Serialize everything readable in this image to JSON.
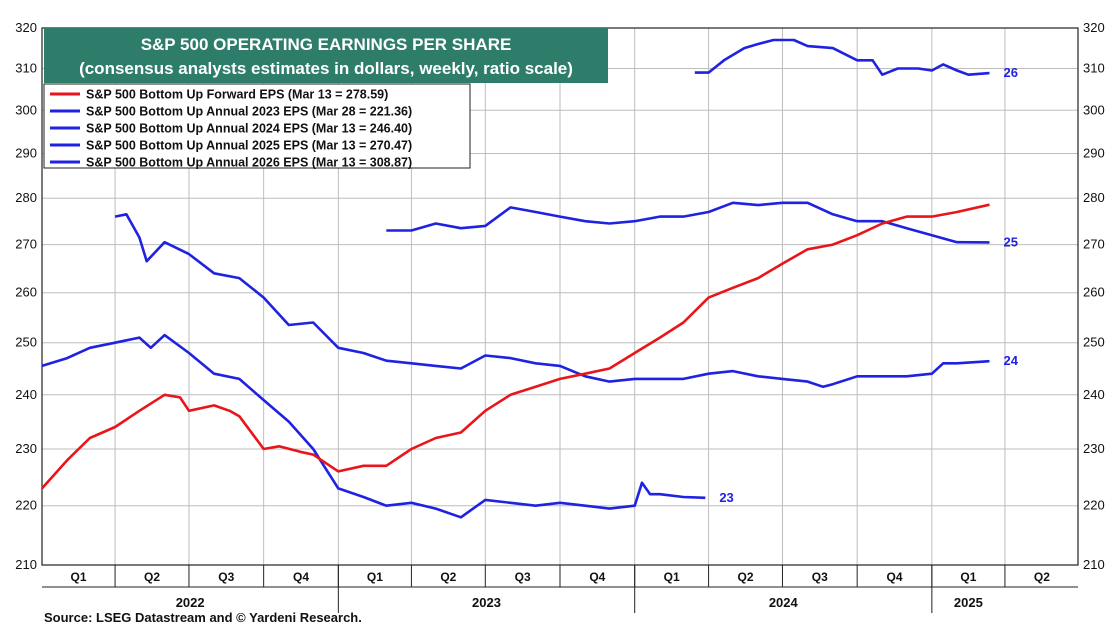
{
  "chart_data": {
    "type": "line",
    "title": "S&P 500 OPERATING EARNINGS PER SHARE",
    "subtitle": "(consensus analysts estimates in dollars, weekly, ratio scale)",
    "y_scale": "log",
    "ylim": [
      210,
      320
    ],
    "y_ticks": [
      210,
      220,
      230,
      240,
      250,
      260,
      270,
      280,
      290,
      300,
      310,
      320
    ],
    "xlim": [
      "2022-01-01",
      "2025-06-30"
    ],
    "x_quarter_labels": [
      "Q1",
      "Q2",
      "Q3",
      "Q4",
      "Q1",
      "Q2",
      "Q3",
      "Q4",
      "Q1",
      "Q2",
      "Q3",
      "Q4",
      "Q1",
      "Q2"
    ],
    "x_year_labels": [
      "2022",
      "2023",
      "2024",
      "2025"
    ],
    "grid": true,
    "legend_position": "top-left",
    "series": [
      {
        "name": "S&P 500 Bottom Up Forward EPS (Mar 13 = 278.59)",
        "color": "#e8151b",
        "points": [
          [
            "2022-01-01",
            223
          ],
          [
            "2022-02-01",
            228
          ],
          [
            "2022-03-01",
            232
          ],
          [
            "2022-04-01",
            234
          ],
          [
            "2022-05-01",
            237
          ],
          [
            "2022-06-01",
            240
          ],
          [
            "2022-06-20",
            239.5
          ],
          [
            "2022-07-01",
            237
          ],
          [
            "2022-08-01",
            238
          ],
          [
            "2022-08-20",
            237
          ],
          [
            "2022-09-01",
            236
          ],
          [
            "2022-10-01",
            230
          ],
          [
            "2022-10-20",
            230.5
          ],
          [
            "2022-11-15",
            229.5
          ],
          [
            "2022-12-01",
            229
          ],
          [
            "2023-01-01",
            226
          ],
          [
            "2023-02-01",
            227
          ],
          [
            "2023-03-01",
            227
          ],
          [
            "2023-04-01",
            230
          ],
          [
            "2023-05-01",
            232
          ],
          [
            "2023-06-01",
            233
          ],
          [
            "2023-07-01",
            237
          ],
          [
            "2023-08-01",
            240
          ],
          [
            "2023-09-01",
            241.5
          ],
          [
            "2023-10-01",
            243
          ],
          [
            "2023-11-01",
            244
          ],
          [
            "2023-12-01",
            245
          ],
          [
            "2024-01-01",
            248
          ],
          [
            "2024-02-01",
            251
          ],
          [
            "2024-03-01",
            254
          ],
          [
            "2024-04-01",
            259
          ],
          [
            "2024-05-01",
            261
          ],
          [
            "2024-06-01",
            263
          ],
          [
            "2024-07-01",
            266
          ],
          [
            "2024-08-01",
            269
          ],
          [
            "2024-09-01",
            270
          ],
          [
            "2024-10-01",
            272
          ],
          [
            "2024-11-01",
            274.5
          ],
          [
            "2024-12-01",
            276
          ],
          [
            "2025-01-01",
            276
          ],
          [
            "2025-02-01",
            277
          ],
          [
            "2025-03-13",
            278.59
          ]
        ]
      },
      {
        "name": "S&P 500 Bottom Up Annual 2023 EPS (Mar 28 = 221.36)",
        "label": "23",
        "color": "#1f22e0",
        "points": [
          [
            "2022-01-01",
            245.5
          ],
          [
            "2022-02-01",
            247
          ],
          [
            "2022-03-01",
            249
          ],
          [
            "2022-04-01",
            250
          ],
          [
            "2022-05-01",
            251
          ],
          [
            "2022-05-15",
            249
          ],
          [
            "2022-06-01",
            251.5
          ],
          [
            "2022-07-01",
            248
          ],
          [
            "2022-08-01",
            244
          ],
          [
            "2022-09-01",
            243
          ],
          [
            "2022-10-01",
            239
          ],
          [
            "2022-11-01",
            235
          ],
          [
            "2022-12-01",
            230
          ],
          [
            "2023-01-01",
            223
          ],
          [
            "2023-02-01",
            221.5
          ],
          [
            "2023-03-01",
            220
          ],
          [
            "2023-04-01",
            220.5
          ],
          [
            "2023-05-01",
            219.5
          ],
          [
            "2023-06-01",
            218
          ],
          [
            "2023-07-01",
            221
          ],
          [
            "2023-08-01",
            220.5
          ],
          [
            "2023-09-01",
            220
          ],
          [
            "2023-10-01",
            220.5
          ],
          [
            "2023-11-01",
            220
          ],
          [
            "2023-12-01",
            219.5
          ],
          [
            "2024-01-01",
            220
          ],
          [
            "2024-01-10",
            224
          ],
          [
            "2024-01-20",
            222
          ],
          [
            "2024-02-01",
            222
          ],
          [
            "2024-03-01",
            221.5
          ],
          [
            "2024-03-28",
            221.36
          ]
        ]
      },
      {
        "name": "S&P 500 Bottom Up Annual 2024 EPS (Mar 13 = 246.40)",
        "label": "24",
        "color": "#1f22e0",
        "points": [
          [
            "2022-04-01",
            276
          ],
          [
            "2022-04-15",
            276.5
          ],
          [
            "2022-05-01",
            271.5
          ],
          [
            "2022-05-10",
            266.5
          ],
          [
            "2022-06-01",
            270.5
          ],
          [
            "2022-07-01",
            268
          ],
          [
            "2022-08-01",
            264
          ],
          [
            "2022-09-01",
            263
          ],
          [
            "2022-10-01",
            259
          ],
          [
            "2022-11-01",
            253.5
          ],
          [
            "2022-12-01",
            254
          ],
          [
            "2023-01-01",
            249
          ],
          [
            "2023-02-01",
            248
          ],
          [
            "2023-03-01",
            246.5
          ],
          [
            "2023-04-01",
            246
          ],
          [
            "2023-05-01",
            245.5
          ],
          [
            "2023-06-01",
            245
          ],
          [
            "2023-07-01",
            247.5
          ],
          [
            "2023-08-01",
            247
          ],
          [
            "2023-09-01",
            246
          ],
          [
            "2023-10-01",
            245.5
          ],
          [
            "2023-11-01",
            243.5
          ],
          [
            "2023-12-01",
            242.5
          ],
          [
            "2024-01-01",
            243
          ],
          [
            "2024-02-01",
            243
          ],
          [
            "2024-03-01",
            243
          ],
          [
            "2024-04-01",
            244
          ],
          [
            "2024-05-01",
            244.5
          ],
          [
            "2024-06-01",
            243.5
          ],
          [
            "2024-07-01",
            243
          ],
          [
            "2024-08-01",
            242.5
          ],
          [
            "2024-08-20",
            241.5
          ],
          [
            "2024-09-01",
            242
          ],
          [
            "2024-10-01",
            243.5
          ],
          [
            "2024-11-01",
            243.5
          ],
          [
            "2024-12-01",
            243.5
          ],
          [
            "2025-01-01",
            244
          ],
          [
            "2025-01-15",
            246
          ],
          [
            "2025-02-01",
            246
          ],
          [
            "2025-03-13",
            246.4
          ]
        ]
      },
      {
        "name": "S&P 500 Bottom Up Annual 2025 EPS (Mar 13 = 270.47)",
        "label": "25",
        "color": "#1f22e0",
        "points": [
          [
            "2023-03-01",
            273
          ],
          [
            "2023-04-01",
            273
          ],
          [
            "2023-05-01",
            274.5
          ],
          [
            "2023-06-01",
            273.5
          ],
          [
            "2023-07-01",
            274
          ],
          [
            "2023-08-01",
            278
          ],
          [
            "2023-09-01",
            277
          ],
          [
            "2023-10-01",
            276
          ],
          [
            "2023-11-01",
            275
          ],
          [
            "2023-12-01",
            274.5
          ],
          [
            "2024-01-01",
            275
          ],
          [
            "2024-02-01",
            276
          ],
          [
            "2024-03-01",
            276
          ],
          [
            "2024-04-01",
            277
          ],
          [
            "2024-05-01",
            279
          ],
          [
            "2024-06-01",
            278.5
          ],
          [
            "2024-07-01",
            279
          ],
          [
            "2024-08-01",
            279
          ],
          [
            "2024-09-01",
            276.5
          ],
          [
            "2024-10-01",
            275
          ],
          [
            "2024-11-01",
            275
          ],
          [
            "2024-12-01",
            273.5
          ],
          [
            "2025-01-01",
            272
          ],
          [
            "2025-02-01",
            270.5
          ],
          [
            "2025-03-13",
            270.47
          ]
        ]
      },
      {
        "name": "S&P 500 Bottom Up Annual 2026 EPS (Mar 13 = 308.87)",
        "label": "26",
        "color": "#1f22e0",
        "points": [
          [
            "2024-03-15",
            309
          ],
          [
            "2024-04-01",
            309
          ],
          [
            "2024-04-20",
            312
          ],
          [
            "2024-05-15",
            315
          ],
          [
            "2024-06-01",
            316
          ],
          [
            "2024-06-20",
            317
          ],
          [
            "2024-07-15",
            317
          ],
          [
            "2024-08-01",
            315.5
          ],
          [
            "2024-09-01",
            315
          ],
          [
            "2024-10-01",
            312
          ],
          [
            "2024-10-20",
            312
          ],
          [
            "2024-11-01",
            308.5
          ],
          [
            "2024-11-20",
            310
          ],
          [
            "2024-12-15",
            310
          ],
          [
            "2025-01-01",
            309.5
          ],
          [
            "2025-01-15",
            311
          ],
          [
            "2025-02-01",
            309.5
          ],
          [
            "2025-02-15",
            308.5
          ],
          [
            "2025-03-13",
            308.87
          ]
        ]
      }
    ]
  },
  "source": "Source: LSEG Datastream and © Yardeni Research."
}
